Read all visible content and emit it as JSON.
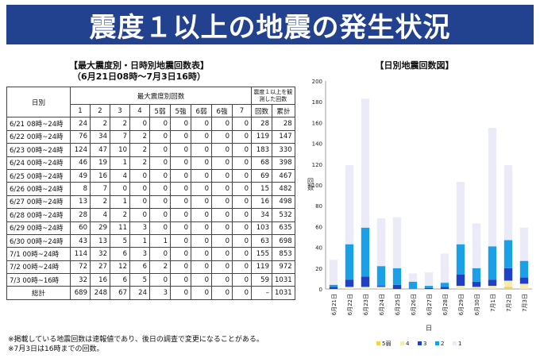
{
  "title": "震度１以上の地震の発生状況",
  "table_title": "【最大震度別・日時別地震回数表】",
  "table_period": "（6月21日08時～7月3日16時）",
  "chart_title": "【日別地震回数図】",
  "table_headers": {
    "date": "日別",
    "max_intensity": "最大震度別回数",
    "observed": "震度１以上を観測した回数",
    "count": "回数",
    "cumulative": "累計",
    "intensities": [
      "1",
      "2",
      "3",
      "4",
      "5弱",
      "5強",
      "6弱",
      "6強",
      "7"
    ]
  },
  "table_rows": [
    {
      "label": "6/21 08時~24時",
      "cells": [
        "24",
        "2",
        "2",
        "0",
        "0",
        "0",
        "0",
        "0",
        "0",
        "28",
        "28"
      ]
    },
    {
      "label": "6/22 00時~24時",
      "cells": [
        "76",
        "34",
        "7",
        "2",
        "0",
        "0",
        "0",
        "0",
        "0",
        "119",
        "147"
      ]
    },
    {
      "label": "6/23 00時~24時",
      "cells": [
        "124",
        "47",
        "10",
        "2",
        "0",
        "0",
        "0",
        "0",
        "0",
        "183",
        "330"
      ]
    },
    {
      "label": "6/24 00時~24時",
      "cells": [
        "46",
        "19",
        "1",
        "2",
        "0",
        "0",
        "0",
        "0",
        "0",
        "68",
        "398"
      ]
    },
    {
      "label": "6/25 00時~24時",
      "cells": [
        "49",
        "16",
        "4",
        "0",
        "0",
        "0",
        "0",
        "0",
        "0",
        "69",
        "467"
      ]
    },
    {
      "label": "6/26 00時~24時",
      "cells": [
        "8",
        "7",
        "0",
        "0",
        "0",
        "0",
        "0",
        "0",
        "0",
        "15",
        "482"
      ]
    },
    {
      "label": "6/27 00時~24時",
      "cells": [
        "13",
        "2",
        "1",
        "0",
        "0",
        "0",
        "0",
        "0",
        "0",
        "16",
        "498"
      ]
    },
    {
      "label": "6/28 00時~24時",
      "cells": [
        "28",
        "4",
        "2",
        "0",
        "0",
        "0",
        "0",
        "0",
        "0",
        "34",
        "532"
      ]
    },
    {
      "label": "6/29 00時~24時",
      "cells": [
        "60",
        "29",
        "11",
        "3",
        "0",
        "0",
        "0",
        "0",
        "0",
        "103",
        "635"
      ]
    },
    {
      "label": "6/30 00時~24時",
      "cells": [
        "43",
        "13",
        "5",
        "1",
        "1",
        "0",
        "0",
        "0",
        "0",
        "63",
        "698"
      ]
    },
    {
      "label": "7/1 00時~24時",
      "cells": [
        "114",
        "32",
        "6",
        "3",
        "0",
        "0",
        "0",
        "0",
        "0",
        "155",
        "853"
      ]
    },
    {
      "label": "7/2 00時~24時",
      "cells": [
        "72",
        "27",
        "12",
        "6",
        "2",
        "0",
        "0",
        "0",
        "0",
        "119",
        "972"
      ]
    },
    {
      "label": "7/3 00時~16時",
      "cells": [
        "32",
        "16",
        "6",
        "5",
        "0",
        "0",
        "0",
        "0",
        "0",
        "59",
        "1031"
      ]
    }
  ],
  "table_total": {
    "label": "総計",
    "cells": [
      "689",
      "248",
      "67",
      "24",
      "3",
      "0",
      "0",
      "0",
      "0",
      "–",
      "1031"
    ]
  },
  "footnotes": [
    "※掲載している地震回数は速報値であり、後日の調査で変更になることがある。",
    "※7月3日は16時までの回数。"
  ],
  "chart_data": {
    "type": "bar",
    "stacked": true,
    "title": "【日別地震回数図】",
    "xlabel": "日",
    "ylabel": "回数",
    "ylim": [
      0,
      200
    ],
    "yticks": [
      0,
      20,
      40,
      60,
      80,
      100,
      120,
      140,
      160,
      180,
      200
    ],
    "categories": [
      "6月21日",
      "6月22日",
      "6月23日",
      "6月24日",
      "6月25日",
      "6月26日",
      "6月27日",
      "6月28日",
      "6月29日",
      "6月30日",
      "7月1日",
      "7月2日",
      "7月3日"
    ],
    "series": [
      {
        "name": "5弱",
        "color": "#f2d34a",
        "values": [
          0,
          0,
          0,
          0,
          0,
          0,
          0,
          0,
          0,
          1,
          0,
          2,
          0
        ]
      },
      {
        "name": "4",
        "color": "#f7ecb0",
        "values": [
          0,
          2,
          2,
          2,
          0,
          0,
          0,
          0,
          3,
          1,
          3,
          6,
          5
        ]
      },
      {
        "name": "3",
        "color": "#1f3fc4",
        "values": [
          2,
          7,
          10,
          1,
          4,
          0,
          1,
          2,
          11,
          5,
          6,
          12,
          6
        ]
      },
      {
        "name": "2",
        "color": "#1aa0e6",
        "values": [
          2,
          34,
          47,
          19,
          16,
          7,
          2,
          4,
          29,
          13,
          32,
          27,
          16
        ]
      },
      {
        "name": "1",
        "color": "#ebebf7",
        "values": [
          24,
          76,
          124,
          46,
          49,
          8,
          13,
          28,
          60,
          43,
          114,
          72,
          32
        ]
      }
    ],
    "legend_position": "bottom"
  }
}
